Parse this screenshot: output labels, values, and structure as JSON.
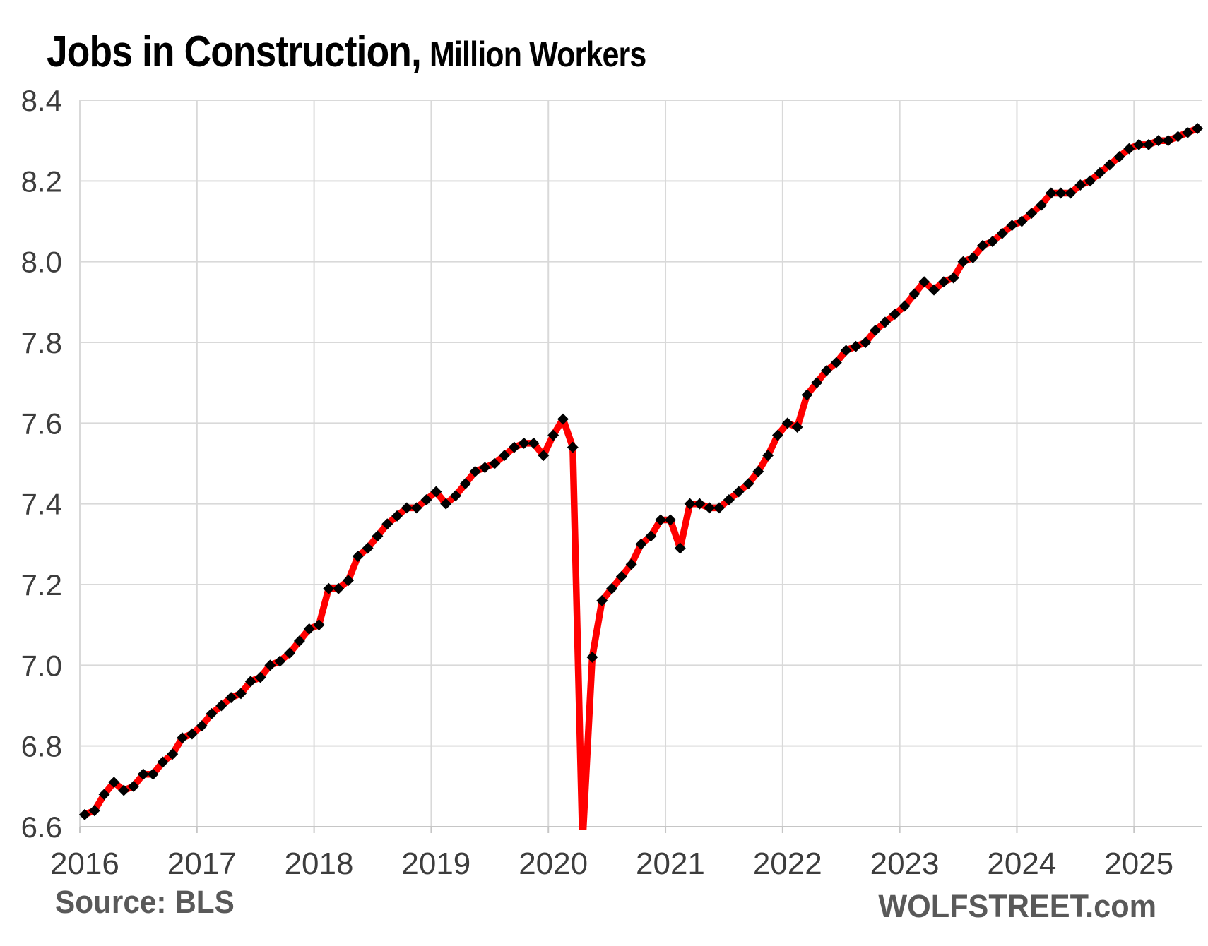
{
  "title": {
    "part1": "Jobs in Construction,",
    "part2": "Million Workers"
  },
  "footer": {
    "source": "Source: BLS",
    "site": "WOLFSTREET.com"
  },
  "colors": {
    "line": "#FF0000",
    "marker": "#000000",
    "gridline": "#D9D9D9",
    "axis_line": "#C6C6C6",
    "tick_label": "#3D3D3D",
    "footer_text": "#595959",
    "title_text": "#000000",
    "background": "#FFFFFF"
  },
  "chart_data": {
    "type": "line",
    "title": "Jobs in Construction, Million Workers",
    "x_unit": "month",
    "x_start": "2016-01",
    "x_end": "2025-07",
    "x_tick_labels": [
      "2016",
      "2017",
      "2018",
      "2019",
      "2020",
      "2021",
      "2022",
      "2023",
      "2024",
      "2025"
    ],
    "ylim": [
      6.6,
      8.4
    ],
    "y_tick_step": 0.2,
    "y_tick_labels": [
      "6.6",
      "6.8",
      "7.0",
      "7.2",
      "7.4",
      "7.6",
      "7.8",
      "8.0",
      "8.2",
      "8.4"
    ],
    "grid": true,
    "legend_position": "none",
    "annotation": "April 2020 value falls below the 6.6 axis minimum and is clipped at the plot floor",
    "series": [
      {
        "name": "Construction jobs, million workers",
        "color": "#FF0000",
        "marker": "black-diamond",
        "values": [
          6.63,
          6.64,
          6.68,
          6.71,
          6.69,
          6.7,
          6.73,
          6.73,
          6.76,
          6.78,
          6.82,
          6.83,
          6.85,
          6.88,
          6.9,
          6.92,
          6.93,
          6.96,
          6.97,
          7.0,
          7.01,
          7.03,
          7.06,
          7.09,
          7.1,
          7.19,
          7.19,
          7.21,
          7.27,
          7.29,
          7.32,
          7.35,
          7.37,
          7.39,
          7.39,
          7.41,
          7.43,
          7.4,
          7.42,
          7.45,
          7.48,
          7.49,
          7.5,
          7.52,
          7.54,
          7.55,
          7.55,
          7.52,
          7.57,
          7.61,
          7.54,
          6.56,
          7.02,
          7.16,
          7.19,
          7.22,
          7.25,
          7.3,
          7.32,
          7.36,
          7.36,
          7.29,
          7.4,
          7.4,
          7.39,
          7.39,
          7.41,
          7.43,
          7.45,
          7.48,
          7.52,
          7.57,
          7.6,
          7.59,
          7.67,
          7.7,
          7.73,
          7.75,
          7.78,
          7.79,
          7.8,
          7.83,
          7.85,
          7.87,
          7.89,
          7.92,
          7.95,
          7.93,
          7.95,
          7.96,
          8.0,
          8.01,
          8.04,
          8.05,
          8.07,
          8.09,
          8.1,
          8.12,
          8.14,
          8.17,
          8.17,
          8.17,
          8.19,
          8.2,
          8.22,
          8.24,
          8.26,
          8.28,
          8.29,
          8.29,
          8.3,
          8.3,
          8.31,
          8.32,
          8.33
        ]
      }
    ]
  }
}
